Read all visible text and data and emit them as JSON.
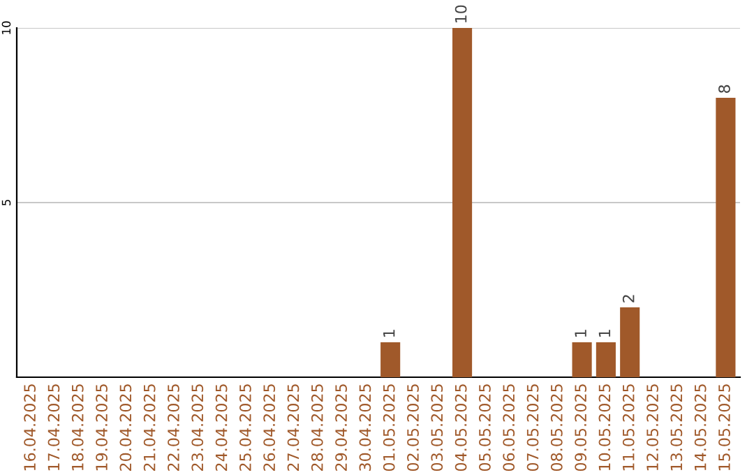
{
  "chart_data": {
    "type": "bar",
    "categories": [
      "16.04.2025",
      "17.04.2025",
      "18.04.2025",
      "19.04.2025",
      "20.04.2025",
      "21.04.2025",
      "22.04.2025",
      "23.04.2025",
      "24.04.2025",
      "25.04.2025",
      "26.04.2025",
      "27.04.2025",
      "28.04.2025",
      "29.04.2025",
      "30.04.2025",
      "01.05.2025",
      "02.05.2025",
      "03.05.2025",
      "04.05.2025",
      "05.05.2025",
      "06.05.2025",
      "07.05.2025",
      "08.05.2025",
      "09.05.2025",
      "10.05.2025",
      "11.05.2025",
      "12.05.2025",
      "13.05.2025",
      "14.05.2025",
      "15.05.2025"
    ],
    "values": [
      0,
      0,
      0,
      0,
      0,
      0,
      0,
      0,
      0,
      0,
      0,
      0,
      0,
      0,
      0,
      1,
      0,
      0,
      10,
      0,
      0,
      0,
      0,
      1,
      1,
      2,
      0,
      0,
      0,
      8
    ],
    "value_labels": [
      null,
      null,
      null,
      null,
      null,
      null,
      null,
      null,
      null,
      null,
      null,
      null,
      null,
      null,
      null,
      "1",
      null,
      null,
      "10",
      null,
      null,
      null,
      null,
      "1",
      "1",
      "2",
      null,
      null,
      null,
      "8"
    ],
    "color": "#a0592a",
    "ylim": [
      0,
      10
    ],
    "yticks": [
      5,
      10
    ],
    "grid": "y"
  }
}
